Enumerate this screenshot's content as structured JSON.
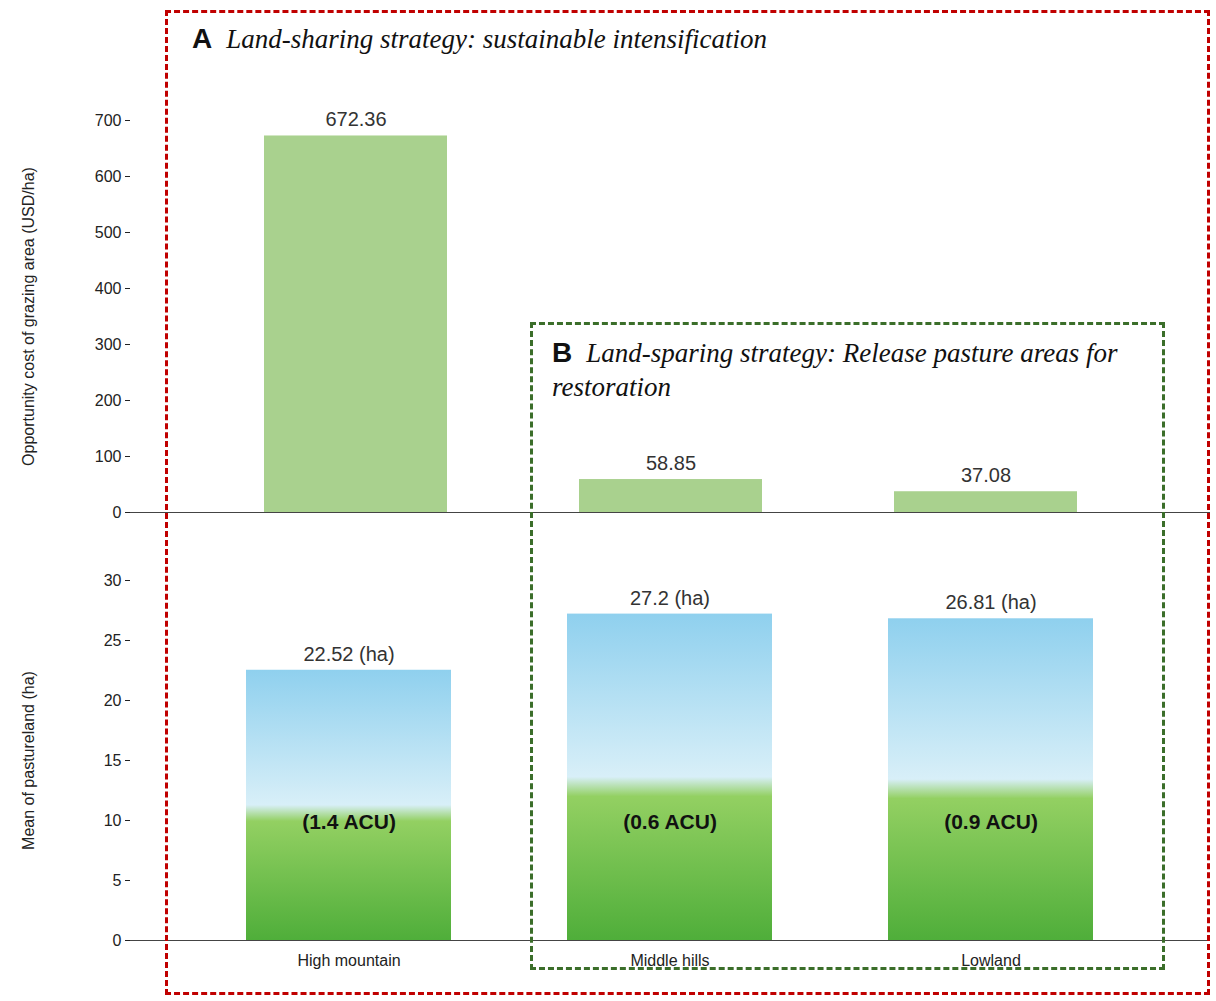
{
  "chart_data": [
    {
      "type": "bar",
      "categories": [
        "High mountain",
        "Middle hills",
        "Lowland"
      ],
      "values": [
        672.36,
        58.85,
        37.08
      ],
      "color": "#a9d18e",
      "y_label": "Opportunity cost of grazing area (USD/ha)",
      "ylim": [
        0,
        700
      ],
      "yticks": [
        0,
        100,
        200,
        300,
        400,
        500,
        600,
        700
      ],
      "data_labels": true,
      "tick_labels": "y",
      "annotations": [
        {
          "letter": "A",
          "text": "Land-sharing strategy: sustainable intensification"
        },
        {
          "letter": "B",
          "text": "Land-sparing strategy: Release pasture areas for restoration"
        }
      ]
    },
    {
      "type": "bar",
      "categories": [
        "High mountain",
        "Middle hills",
        "Lowland"
      ],
      "values": [
        22.52,
        27.2,
        26.81
      ],
      "value_labels": [
        "22.52 (ha)",
        "27.2 (ha)",
        "26.81 (ha)"
      ],
      "acu_labels": [
        "(1.4 ACU)",
        "(0.6 ACU)",
        "(0.9 ACU)"
      ],
      "y_label": "Mean of pastureland (ha)",
      "ylim": [
        0,
        30
      ],
      "yticks": [
        0,
        5,
        10,
        15,
        20,
        25,
        30
      ],
      "data_labels": true
    }
  ]
}
